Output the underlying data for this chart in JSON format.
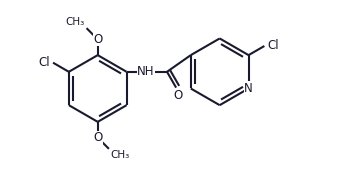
{
  "bg_color": "#ffffff",
  "line_color": "#1a1a2e",
  "line_width": 1.5,
  "font_size": 8.5,
  "figsize": [
    3.64,
    1.84
  ],
  "dpi": 100,
  "xlim": [
    0,
    10
  ],
  "ylim": [
    0,
    5.2
  ]
}
